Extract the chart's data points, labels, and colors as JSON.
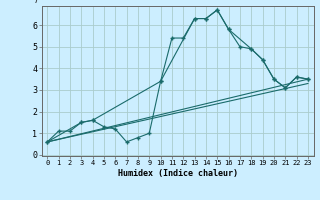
{
  "xlabel": "Humidex (Indice chaleur)",
  "bg_color": "#cceeff",
  "grid_color": "#aacccc",
  "line_color": "#1a6b6b",
  "xlim": [
    -0.5,
    23.5
  ],
  "ylim": [
    0,
    7
  ],
  "yticks": [
    0,
    1,
    2,
    3,
    4,
    5,
    6
  ],
  "xticks": [
    0,
    1,
    2,
    3,
    4,
    5,
    6,
    7,
    8,
    9,
    10,
    11,
    12,
    13,
    14,
    15,
    16,
    17,
    18,
    19,
    20,
    21,
    22,
    23
  ],
  "line1_x": [
    0,
    1,
    2,
    3,
    4,
    5,
    6,
    7,
    8,
    9,
    10,
    11,
    12,
    13,
    14,
    15,
    16,
    17,
    18,
    19,
    20,
    21,
    22,
    23
  ],
  "line1_y": [
    0.6,
    1.1,
    1.1,
    1.5,
    1.6,
    1.3,
    1.2,
    0.6,
    0.8,
    1.0,
    3.4,
    5.4,
    5.4,
    6.3,
    6.3,
    6.7,
    5.8,
    5.0,
    4.9,
    4.4,
    3.5,
    3.1,
    3.6,
    3.5
  ],
  "line2_x": [
    0,
    3,
    4,
    10,
    13,
    14,
    15,
    16,
    18,
    19,
    20,
    21,
    22,
    23
  ],
  "line2_y": [
    0.6,
    1.5,
    1.6,
    3.4,
    6.3,
    6.3,
    6.7,
    5.8,
    4.9,
    4.4,
    3.5,
    3.1,
    3.6,
    3.5
  ],
  "line3_x": [
    0,
    23
  ],
  "line3_y": [
    0.6,
    3.5
  ],
  "line4_x": [
    0,
    23
  ],
  "line4_y": [
    0.6,
    3.5
  ],
  "marker": "+",
  "marker_size": 2.5,
  "lw": 0.8
}
